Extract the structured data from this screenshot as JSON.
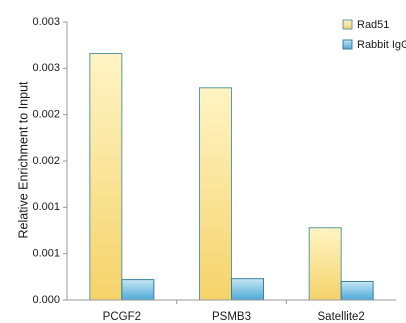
{
  "chart_data": {
    "type": "bar",
    "ylabel": "Relative Enrichment to Input",
    "xlabel": "",
    "yticks": [
      "0.000",
      "0.001",
      "0.001",
      "0.002",
      "0.002",
      "0.003",
      "0.003"
    ],
    "ylim": [
      0,
      0.003
    ],
    "categories": [
      "PCGF2",
      "PSMB3",
      "Satellite2"
    ],
    "series": [
      {
        "name": "Rad51",
        "values": [
          0.00266,
          0.00229,
          0.00078
        ],
        "color_top": "#fff4c4",
        "color_bottom": "#f5d36a",
        "stroke": "#5a9aa6"
      },
      {
        "name": "Rabbit IgG",
        "values": [
          0.00022,
          0.00023,
          0.0002
        ],
        "color_top": "#c6e6f4",
        "color_bottom": "#4ea9d6",
        "stroke": "#3a7f9e"
      }
    ],
    "legend_position": "top-right",
    "grid": false
  }
}
